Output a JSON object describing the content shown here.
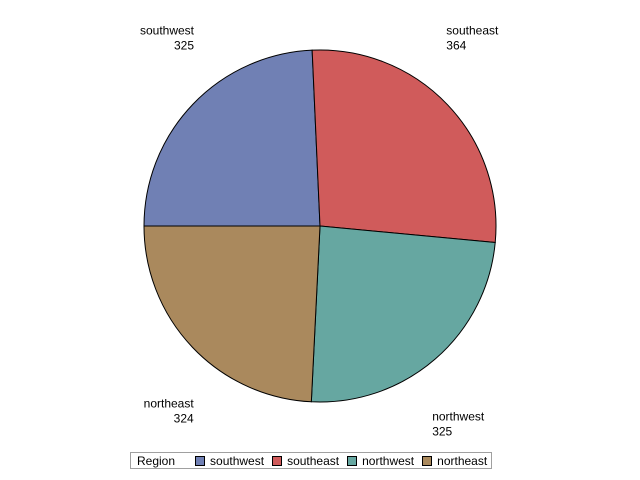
{
  "chart_data": {
    "type": "pie",
    "title": "",
    "categories": [
      "southwest",
      "southeast",
      "northwest",
      "northeast"
    ],
    "values": [
      325,
      364,
      325,
      324
    ],
    "colors": [
      "#7080b4",
      "#d05b5b",
      "#66a7a1",
      "#aa895d"
    ],
    "show_value_labels": true,
    "legend": {
      "title": "Region",
      "placement": "bottom-center",
      "entries": [
        "southwest",
        "southeast",
        "northwest",
        "northeast"
      ]
    }
  }
}
